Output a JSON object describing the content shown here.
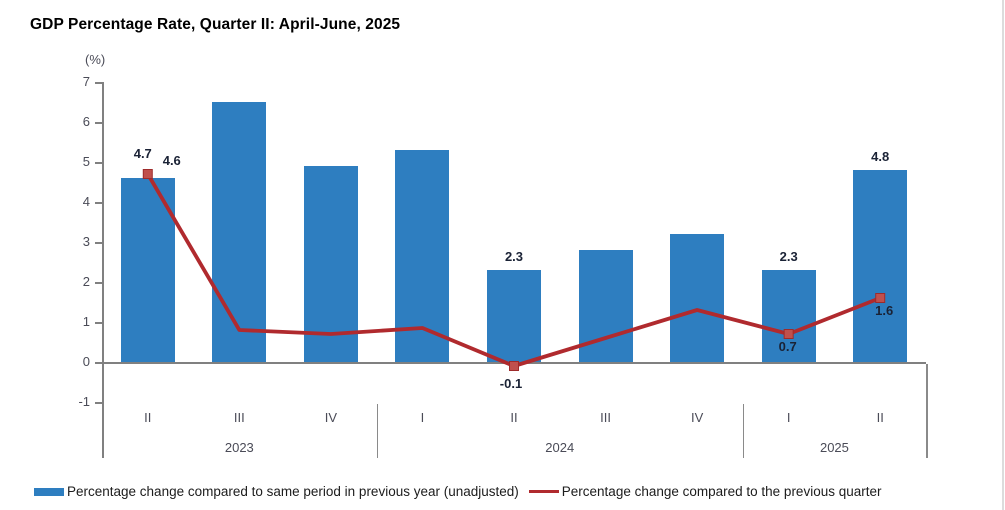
{
  "chart_data": {
    "type": "bar+line",
    "title": "GDP Percentage Rate, Quarter II: April-June, 2025",
    "unit_label": "(%)",
    "categories": [
      "II",
      "III",
      "IV",
      "I",
      "II",
      "III",
      "IV",
      "I",
      "II"
    ],
    "year_groups": [
      {
        "label": "2023",
        "span": 3
      },
      {
        "label": "2024",
        "span": 4
      },
      {
        "label": "2025",
        "span": 2
      }
    ],
    "y_ticks": [
      7,
      6,
      5,
      4,
      3,
      2,
      1,
      0,
      -1
    ],
    "ylim": [
      -1,
      7
    ],
    "grid": false,
    "legend_position": "bottom",
    "series": [
      {
        "name": "Percentage change compared to same period in previous year (unadjusted)",
        "type": "bar",
        "color": "#2E7EC0",
        "values": [
          4.6,
          6.5,
          4.9,
          5.3,
          2.3,
          2.8,
          3.2,
          2.3,
          4.8
        ],
        "labels": [
          "4.6",
          null,
          null,
          null,
          "2.3",
          null,
          null,
          "2.3",
          "4.8"
        ]
      },
      {
        "name": "Percentage change compared to the previous quarter",
        "type": "line",
        "color": "#B02A2E",
        "marker_fill": "#C0504D",
        "marker_edge": "#9E2B2B",
        "values": [
          4.7,
          0.8,
          0.7,
          0.85,
          -0.1,
          0.6,
          1.3,
          0.7,
          1.6
        ],
        "labels": [
          "4.7",
          null,
          null,
          null,
          "-0.1",
          null,
          null,
          "0.7",
          "1.6"
        ],
        "markers": [
          true,
          false,
          false,
          false,
          true,
          false,
          false,
          true,
          true
        ]
      }
    ],
    "colors": {
      "bar": "#2E7EC0",
      "line": "#B02A2E",
      "axis": "#808080",
      "tick_text": "#4a4b57",
      "data_label_text": "#1a2235"
    }
  }
}
